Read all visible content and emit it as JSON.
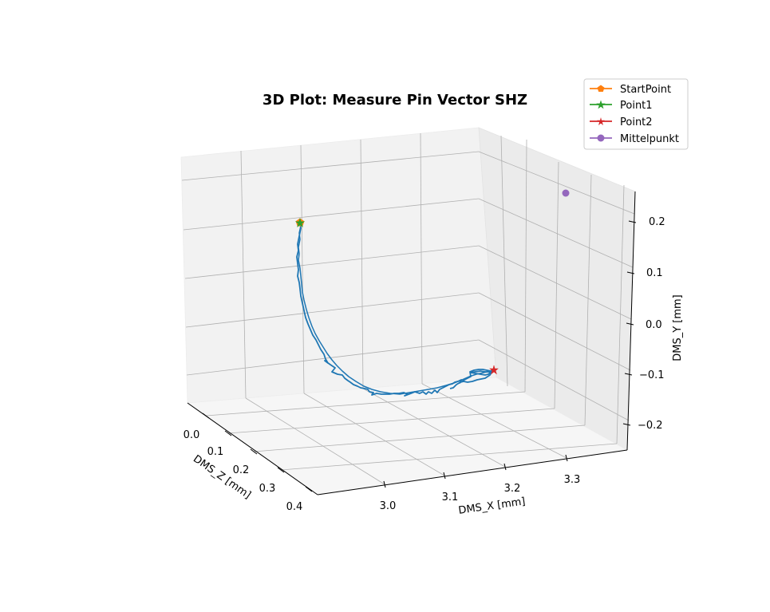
{
  "chart_data": {
    "type": "line",
    "projection": "3d",
    "title": "3D Plot: Measure Pin Vector SHZ",
    "xlabel": "DMS_X [mm]",
    "ylabel": "DMS_Y [mm]",
    "zlabel": "DMS_Z [mm]",
    "x_ticks": [
      "3.0",
      "3.1",
      "3.2",
      "3.3"
    ],
    "y_ticks": [
      "−0.2",
      "−0.1",
      "0.0",
      "0.1",
      "0.2"
    ],
    "z_ticks": [
      "0.0",
      "0.1",
      "0.2",
      "0.3",
      "0.4"
    ],
    "grid": true,
    "legend_position": "top-right",
    "legend": [
      {
        "label": "StartPoint",
        "color": "#ff7f0e",
        "marker": "pentagon"
      },
      {
        "label": "Point1",
        "color": "#2ca02c",
        "marker": "star"
      },
      {
        "label": "Point2",
        "color": "#d62728",
        "marker": "thin-star"
      },
      {
        "label": "Mittelpunkt",
        "color": "#9467bd",
        "marker": "circle"
      }
    ],
    "path_color": "#1f77b4"
  }
}
